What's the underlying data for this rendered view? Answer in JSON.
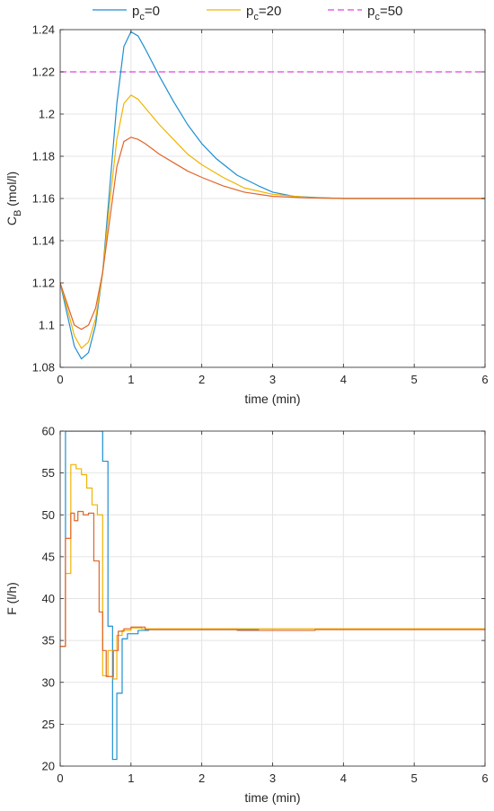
{
  "legend": [
    {
      "base": "p",
      "sub": "c",
      "rest": "=0",
      "color": "#1f8fd0",
      "dashed": false
    },
    {
      "base": "p",
      "sub": "c",
      "rest": "=20",
      "color": "#f0b400",
      "dashed": false
    },
    {
      "base": "p",
      "sub": "c",
      "rest": "=50",
      "color": "#e040e0",
      "dashed": true
    }
  ],
  "chart_data": [
    {
      "type": "line",
      "xlabel": "time (min)",
      "ylabel_base": "C",
      "ylabel_sub": "B",
      "ylabel_rest": " (mol/l)",
      "xlim": [
        0,
        6
      ],
      "ylim": [
        1.08,
        1.24
      ],
      "xticks": [
        0,
        1,
        2,
        3,
        4,
        5,
        6
      ],
      "yticks": [
        1.08,
        1.1,
        1.12,
        1.14,
        1.16,
        1.18,
        1.2,
        1.22,
        1.24
      ],
      "ytick_labels": [
        "1.08",
        "1.1",
        "1.12",
        "1.14",
        "1.16",
        "1.18",
        "1.2",
        "1.22",
        "1.24"
      ],
      "grid": true,
      "reference_line": {
        "y": 1.22,
        "color": "#e040e0",
        "dashed": true
      },
      "series": [
        {
          "name": "p_c=0",
          "color": "#1f8fd0",
          "step": false,
          "points": [
            [
              0,
              1.12
            ],
            [
              0.1,
              1.105
            ],
            [
              0.2,
              1.09
            ],
            [
              0.3,
              1.084
            ],
            [
              0.4,
              1.087
            ],
            [
              0.5,
              1.1
            ],
            [
              0.6,
              1.125
            ],
            [
              0.7,
              1.165
            ],
            [
              0.8,
              1.205
            ],
            [
              0.9,
              1.232
            ],
            [
              1.0,
              1.239
            ],
            [
              1.1,
              1.237
            ],
            [
              1.2,
              1.231
            ],
            [
              1.4,
              1.218
            ],
            [
              1.6,
              1.206
            ],
            [
              1.8,
              1.195
            ],
            [
              2.0,
              1.186
            ],
            [
              2.2,
              1.179
            ],
            [
              2.5,
              1.171
            ],
            [
              2.8,
              1.166
            ],
            [
              3.0,
              1.163
            ],
            [
              3.3,
              1.161
            ],
            [
              3.6,
              1.1605
            ],
            [
              4.0,
              1.16
            ],
            [
              5.0,
              1.16
            ],
            [
              6.0,
              1.16
            ]
          ]
        },
        {
          "name": "p_c=20",
          "color": "#f0b400",
          "step": false,
          "points": [
            [
              0,
              1.12
            ],
            [
              0.1,
              1.108
            ],
            [
              0.2,
              1.095
            ],
            [
              0.3,
              1.089
            ],
            [
              0.4,
              1.092
            ],
            [
              0.5,
              1.103
            ],
            [
              0.6,
              1.125
            ],
            [
              0.7,
              1.158
            ],
            [
              0.8,
              1.188
            ],
            [
              0.9,
              1.205
            ],
            [
              1.0,
              1.209
            ],
            [
              1.1,
              1.207
            ],
            [
              1.2,
              1.203
            ],
            [
              1.4,
              1.195
            ],
            [
              1.6,
              1.188
            ],
            [
              1.8,
              1.181
            ],
            [
              2.0,
              1.176
            ],
            [
              2.3,
              1.17
            ],
            [
              2.6,
              1.165
            ],
            [
              3.0,
              1.162
            ],
            [
              3.5,
              1.1605
            ],
            [
              4.0,
              1.16
            ],
            [
              6.0,
              1.16
            ]
          ]
        },
        {
          "name": "p_c=50",
          "color": "#e0652a",
          "step": false,
          "points": [
            [
              0,
              1.12
            ],
            [
              0.1,
              1.11
            ],
            [
              0.2,
              1.1
            ],
            [
              0.3,
              1.098
            ],
            [
              0.4,
              1.1
            ],
            [
              0.5,
              1.108
            ],
            [
              0.6,
              1.125
            ],
            [
              0.7,
              1.15
            ],
            [
              0.8,
              1.175
            ],
            [
              0.9,
              1.187
            ],
            [
              1.0,
              1.189
            ],
            [
              1.1,
              1.188
            ],
            [
              1.2,
              1.186
            ],
            [
              1.4,
              1.181
            ],
            [
              1.6,
              1.177
            ],
            [
              1.8,
              1.173
            ],
            [
              2.0,
              1.17
            ],
            [
              2.3,
              1.166
            ],
            [
              2.6,
              1.163
            ],
            [
              3.0,
              1.161
            ],
            [
              3.5,
              1.1603
            ],
            [
              4.0,
              1.16
            ],
            [
              6.0,
              1.16
            ]
          ]
        }
      ]
    },
    {
      "type": "line",
      "xlabel": "time (min)",
      "ylabel_base": "F (l/h)",
      "ylabel_sub": "",
      "ylabel_rest": "",
      "xlim": [
        0,
        6
      ],
      "ylim": [
        20,
        60
      ],
      "xticks": [
        0,
        1,
        2,
        3,
        4,
        5,
        6
      ],
      "yticks": [
        20,
        25,
        30,
        35,
        40,
        45,
        50,
        55,
        60
      ],
      "ytick_labels": [
        "20",
        "25",
        "30",
        "35",
        "40",
        "45",
        "50",
        "55",
        "60"
      ],
      "grid": true,
      "series": [
        {
          "name": "p_c=0",
          "color": "#1f8fd0",
          "step": true,
          "points": [
            [
              0,
              34.3
            ],
            [
              0.075,
              34.3
            ],
            [
              0.075,
              60
            ],
            [
              0.6,
              60
            ],
            [
              0.6,
              56.4
            ],
            [
              0.675,
              56.4
            ],
            [
              0.675,
              36.7
            ],
            [
              0.74,
              36.7
            ],
            [
              0.74,
              20.8
            ],
            [
              0.8,
              20.8
            ],
            [
              0.8,
              28.7
            ],
            [
              0.875,
              28.7
            ],
            [
              0.875,
              35.2
            ],
            [
              0.95,
              35.2
            ],
            [
              0.95,
              35.8
            ],
            [
              1.1,
              35.8
            ],
            [
              1.1,
              36.2
            ],
            [
              1.25,
              36.2
            ],
            [
              1.25,
              36.3
            ],
            [
              2.8,
              36.3
            ],
            [
              2.8,
              36.4
            ],
            [
              6,
              36.4
            ]
          ]
        },
        {
          "name": "p_c=20",
          "color": "#f0b400",
          "step": true,
          "points": [
            [
              0,
              34.3
            ],
            [
              0.075,
              34.3
            ],
            [
              0.075,
              43
            ],
            [
              0.15,
              43
            ],
            [
              0.15,
              56
            ],
            [
              0.225,
              56
            ],
            [
              0.225,
              55.5
            ],
            [
              0.3,
              55.5
            ],
            [
              0.3,
              54.8
            ],
            [
              0.375,
              54.8
            ],
            [
              0.375,
              53.2
            ],
            [
              0.45,
              53.2
            ],
            [
              0.45,
              51.2
            ],
            [
              0.525,
              51.2
            ],
            [
              0.525,
              50
            ],
            [
              0.6,
              50
            ],
            [
              0.6,
              30.8
            ],
            [
              0.675,
              30.8
            ],
            [
              0.675,
              33.8
            ],
            [
              0.75,
              33.8
            ],
            [
              0.75,
              30.4
            ],
            [
              0.8,
              30.4
            ],
            [
              0.8,
              35.6
            ],
            [
              0.875,
              35.6
            ],
            [
              0.875,
              36.2
            ],
            [
              1.0,
              36.2
            ],
            [
              1.0,
              36.5
            ],
            [
              1.15,
              36.5
            ],
            [
              1.15,
              36.4
            ],
            [
              6,
              36.4
            ]
          ]
        },
        {
          "name": "p_c=50",
          "color": "#e0652a",
          "step": true,
          "points": [
            [
              0,
              34.3
            ],
            [
              0.075,
              34.3
            ],
            [
              0.075,
              47.2
            ],
            [
              0.15,
              47.2
            ],
            [
              0.15,
              50.2
            ],
            [
              0.2,
              50.2
            ],
            [
              0.2,
              49.3
            ],
            [
              0.25,
              49.3
            ],
            [
              0.25,
              50.4
            ],
            [
              0.325,
              50.4
            ],
            [
              0.325,
              50
            ],
            [
              0.4,
              50
            ],
            [
              0.4,
              50.2
            ],
            [
              0.475,
              50.2
            ],
            [
              0.475,
              44.5
            ],
            [
              0.55,
              44.5
            ],
            [
              0.55,
              38.4
            ],
            [
              0.6,
              38.4
            ],
            [
              0.6,
              33.8
            ],
            [
              0.65,
              33.8
            ],
            [
              0.65,
              30.7
            ],
            [
              0.75,
              30.7
            ],
            [
              0.75,
              33.8
            ],
            [
              0.82,
              33.8
            ],
            [
              0.82,
              36.1
            ],
            [
              0.9,
              36.1
            ],
            [
              0.9,
              36.4
            ],
            [
              1.0,
              36.4
            ],
            [
              1.0,
              36.6
            ],
            [
              1.2,
              36.6
            ],
            [
              1.2,
              36.3
            ],
            [
              2.5,
              36.3
            ],
            [
              2.5,
              36.2
            ],
            [
              3.6,
              36.2
            ],
            [
              3.6,
              36.3
            ],
            [
              6,
              36.3
            ]
          ]
        }
      ]
    }
  ]
}
